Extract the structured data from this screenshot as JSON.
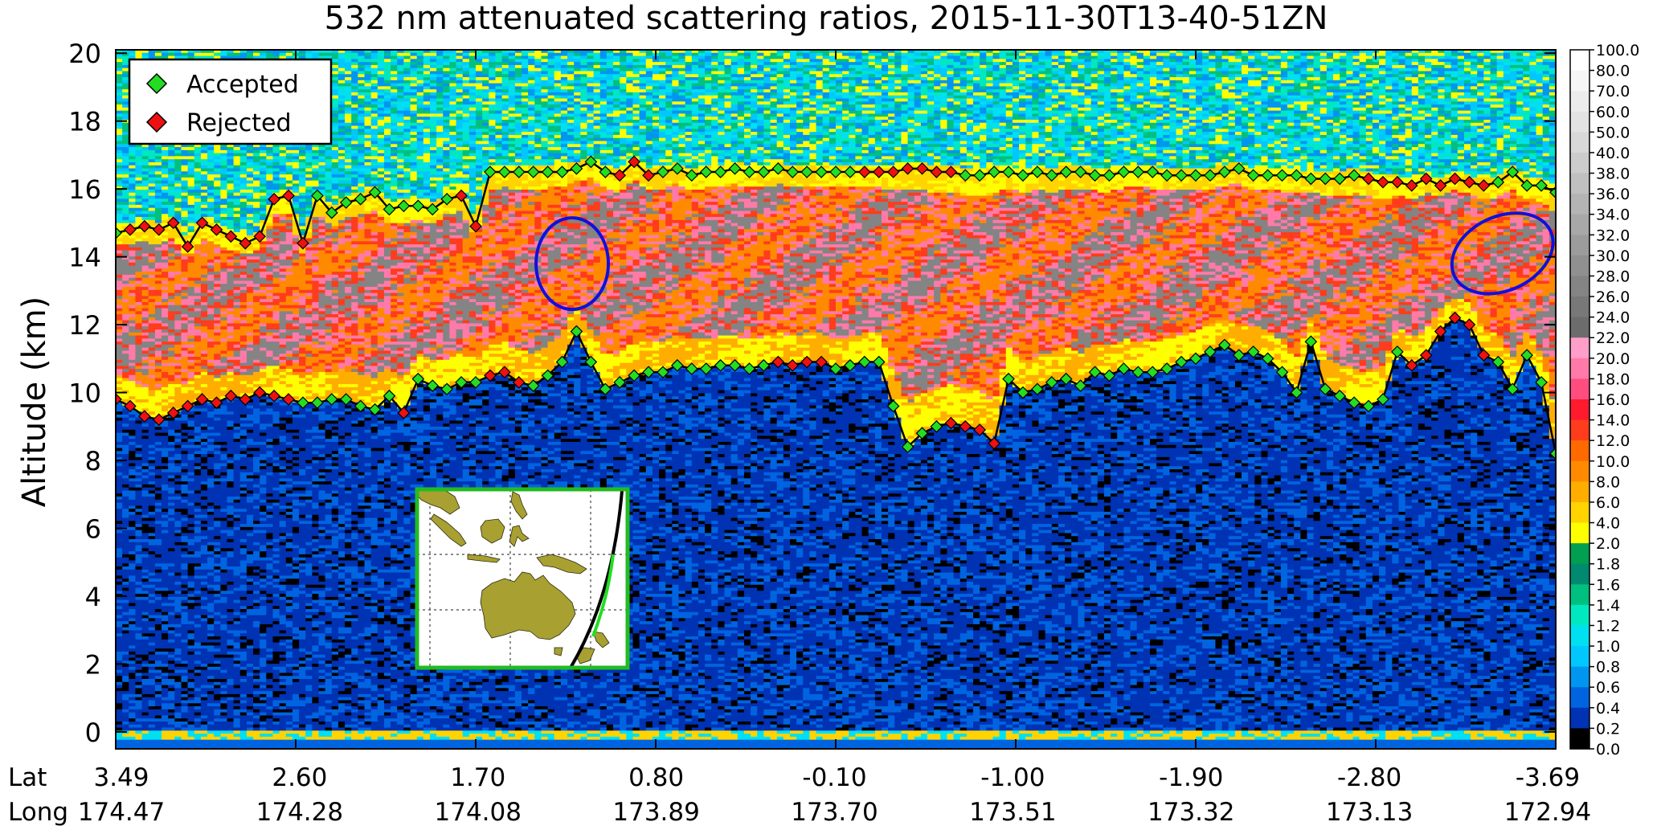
{
  "chart_data": {
    "type": "heatmap",
    "title": "532 nm attenuated scattering ratios, 2015-11-30T13-40-51ZN",
    "ylabel": "Altitude (km)",
    "ylim": [
      -0.5,
      20.1
    ],
    "y_ticks": [
      0,
      2,
      4,
      6,
      8,
      10,
      12,
      14,
      16,
      18,
      20
    ],
    "x_rows": [
      {
        "label": "Lat",
        "values": [
          "3.49",
          "2.60",
          "1.70",
          "0.80",
          "-0.10",
          "-1.00",
          "-1.90",
          "-2.80",
          "-3.69"
        ]
      },
      {
        "label": "Long",
        "values": [
          "174.47",
          "174.28",
          "174.08",
          "173.89",
          "173.70",
          "173.51",
          "173.32",
          "173.13",
          "172.94"
        ]
      }
    ],
    "colorbar": {
      "labels": [
        "100.0",
        "80.0",
        "70.0",
        "60.0",
        "50.0",
        "40.0",
        "38.0",
        "36.0",
        "34.0",
        "32.0",
        "30.0",
        "28.0",
        "26.0",
        "24.0",
        "22.0",
        "20.0",
        "18.0",
        "16.0",
        "14.0",
        "12.0",
        "10.0",
        "8.0",
        "6.0",
        "4.0",
        "2.0",
        "1.8",
        "1.6",
        "1.4",
        "1.2",
        "1.0",
        "0.8",
        "0.6",
        "0.4",
        "0.2",
        "0.0"
      ],
      "colors": [
        "#ffffff",
        "#f6f6f6",
        "#ececec",
        "#e2e2e2",
        "#d8d8d8",
        "#cccccc",
        "#c0c0c0",
        "#b4b4b4",
        "#a8a8a8",
        "#9c9c9c",
        "#909090",
        "#848484",
        "#787878",
        "#6c6c6c",
        "#ff9ec8",
        "#ff7aa8",
        "#ff4d80",
        "#ff1a2e",
        "#ff3c1c",
        "#ff6a00",
        "#ff8a00",
        "#ffae00",
        "#ffd400",
        "#ffff00",
        "#00a050",
        "#008a70",
        "#00c080",
        "#00e8c0",
        "#00e0f0",
        "#00c8ff",
        "#0096f0",
        "#0064e0",
        "#0032b4",
        "#000000"
      ]
    },
    "legend": {
      "position": "top-left",
      "entries": [
        {
          "name": "Accepted",
          "color": "#22dd22"
        },
        {
          "name": "Rejected",
          "color": "#ee1111"
        }
      ]
    },
    "series": [
      {
        "name": "cloud-top-altitude",
        "x": [
          0.0,
          0.01,
          0.02,
          0.03,
          0.04,
          0.05,
          0.06,
          0.07,
          0.08,
          0.09,
          0.1,
          0.11,
          0.12,
          0.13,
          0.14,
          0.15,
          0.16,
          0.17,
          0.18,
          0.19,
          0.2,
          0.21,
          0.22,
          0.23,
          0.24,
          0.25,
          0.26,
          0.27,
          0.28,
          0.29,
          0.3,
          0.31,
          0.32,
          0.33,
          0.34,
          0.35,
          0.36,
          0.37,
          0.38,
          0.39,
          0.4,
          0.41,
          0.42,
          0.43,
          0.44,
          0.45,
          0.46,
          0.47,
          0.48,
          0.49,
          0.5,
          0.51,
          0.52,
          0.53,
          0.54,
          0.55,
          0.56,
          0.57,
          0.58,
          0.59,
          0.6,
          0.61,
          0.62,
          0.63,
          0.64,
          0.65,
          0.66,
          0.67,
          0.68,
          0.69,
          0.7,
          0.71,
          0.72,
          0.73,
          0.74,
          0.75,
          0.76,
          0.77,
          0.78,
          0.79,
          0.8,
          0.81,
          0.82,
          0.83,
          0.84,
          0.85,
          0.86,
          0.87,
          0.88,
          0.89,
          0.9,
          0.91,
          0.92,
          0.93,
          0.94,
          0.95,
          0.96,
          0.97,
          0.98,
          0.99,
          1.0
        ],
        "y": [
          14.7,
          14.8,
          14.9,
          14.8,
          15.0,
          14.3,
          15.0,
          14.8,
          14.6,
          14.4,
          14.6,
          15.7,
          15.8,
          14.4,
          15.8,
          15.3,
          15.6,
          15.7,
          15.9,
          15.4,
          15.5,
          15.5,
          15.4,
          15.7,
          15.8,
          14.9,
          16.5,
          16.5,
          16.5,
          16.5,
          16.5,
          16.5,
          16.6,
          16.8,
          16.5,
          16.4,
          16.8,
          16.4,
          16.5,
          16.6,
          16.4,
          16.5,
          16.5,
          16.6,
          16.5,
          16.5,
          16.6,
          16.5,
          16.5,
          16.5,
          16.5,
          16.5,
          16.5,
          16.5,
          16.5,
          16.6,
          16.6,
          16.5,
          16.5,
          16.4,
          16.4,
          16.5,
          16.5,
          16.4,
          16.5,
          16.4,
          16.5,
          16.5,
          16.4,
          16.4,
          16.5,
          16.5,
          16.5,
          16.4,
          16.4,
          16.4,
          16.4,
          16.5,
          16.6,
          16.4,
          16.4,
          16.4,
          16.4,
          16.3,
          16.3,
          16.3,
          16.4,
          16.3,
          16.2,
          16.2,
          16.1,
          16.3,
          16.1,
          16.3,
          16.2,
          16.1,
          16.2,
          16.5,
          16.1,
          16.1,
          15.9
        ],
        "status": [
          "A",
          "R",
          "R",
          "R",
          "R",
          "R",
          "R",
          "R",
          "R",
          "R",
          "R",
          "R",
          "R",
          "R",
          "A",
          "A",
          "A",
          "A",
          "A",
          "A",
          "A",
          "A",
          "A",
          "A",
          "R",
          "R",
          "A",
          "A",
          "A",
          "A",
          "A",
          "A",
          "A",
          "A",
          "A",
          "R",
          "R",
          "R",
          "A",
          "A",
          "A",
          "A",
          "A",
          "A",
          "A",
          "A",
          "A",
          "A",
          "A",
          "A",
          "A",
          "A",
          "R",
          "R",
          "R",
          "R",
          "R",
          "R",
          "R",
          "A",
          "A",
          "A",
          "A",
          "A",
          "A",
          "A",
          "A",
          "A",
          "A",
          "A",
          "A",
          "A",
          "A",
          "A",
          "A",
          "A",
          "A",
          "A",
          "A",
          "A",
          "A",
          "A",
          "A",
          "A",
          "A",
          "A",
          "A",
          "R",
          "R",
          "R",
          "R",
          "R",
          "R",
          "R",
          "R",
          "R",
          "A",
          "A",
          "A",
          "A",
          "A"
        ]
      },
      {
        "name": "cloud-base-altitude",
        "x": [
          0.0,
          0.01,
          0.02,
          0.03,
          0.04,
          0.05,
          0.06,
          0.07,
          0.08,
          0.09,
          0.1,
          0.11,
          0.12,
          0.13,
          0.14,
          0.15,
          0.16,
          0.17,
          0.18,
          0.19,
          0.2,
          0.21,
          0.22,
          0.23,
          0.24,
          0.25,
          0.26,
          0.27,
          0.28,
          0.29,
          0.3,
          0.31,
          0.32,
          0.33,
          0.34,
          0.35,
          0.36,
          0.37,
          0.38,
          0.39,
          0.4,
          0.41,
          0.42,
          0.43,
          0.44,
          0.45,
          0.46,
          0.47,
          0.48,
          0.49,
          0.5,
          0.51,
          0.52,
          0.53,
          0.54,
          0.55,
          0.56,
          0.57,
          0.58,
          0.59,
          0.6,
          0.61,
          0.62,
          0.63,
          0.64,
          0.65,
          0.66,
          0.67,
          0.68,
          0.69,
          0.7,
          0.71,
          0.72,
          0.73,
          0.74,
          0.75,
          0.76,
          0.77,
          0.78,
          0.79,
          0.8,
          0.81,
          0.82,
          0.83,
          0.84,
          0.85,
          0.86,
          0.87,
          0.88,
          0.89,
          0.9,
          0.91,
          0.92,
          0.93,
          0.94,
          0.95,
          0.96,
          0.97,
          0.98,
          0.99,
          1.0
        ],
        "y": [
          9.8,
          9.6,
          9.3,
          9.2,
          9.4,
          9.6,
          9.8,
          9.7,
          9.9,
          9.8,
          10.0,
          9.9,
          9.8,
          9.7,
          9.7,
          9.8,
          9.8,
          9.6,
          9.5,
          9.9,
          9.4,
          10.4,
          10.2,
          10.1,
          10.3,
          10.3,
          10.5,
          10.6,
          10.3,
          10.2,
          10.5,
          10.9,
          11.8,
          10.9,
          10.1,
          10.3,
          10.5,
          10.6,
          10.6,
          10.8,
          10.7,
          10.7,
          10.8,
          10.8,
          10.7,
          10.8,
          10.9,
          10.8,
          10.9,
          10.9,
          10.7,
          10.8,
          10.9,
          10.9,
          9.6,
          8.4,
          8.8,
          9.0,
          9.1,
          9.0,
          8.9,
          8.5,
          10.4,
          10.0,
          10.1,
          10.3,
          10.4,
          10.2,
          10.6,
          10.5,
          10.7,
          10.6,
          10.6,
          10.7,
          10.9,
          11.0,
          11.2,
          11.4,
          11.1,
          11.2,
          11.0,
          10.6,
          10.0,
          11.5,
          10.1,
          9.9,
          9.7,
          9.6,
          9.8,
          11.2,
          10.8,
          11.1,
          11.8,
          12.2,
          12.0,
          11.1,
          10.9,
          10.1,
          11.1,
          10.3,
          8.2
        ],
        "status": [
          "R",
          "R",
          "R",
          "R",
          "R",
          "R",
          "R",
          "R",
          "R",
          "R",
          "R",
          "R",
          "R",
          "A",
          "A",
          "A",
          "A",
          "A",
          "A",
          "A",
          "R",
          "A",
          "A",
          "A",
          "A",
          "A",
          "R",
          "R",
          "R",
          "A",
          "A",
          "A",
          "A",
          "A",
          "A",
          "A",
          "A",
          "A",
          "A",
          "A",
          "A",
          "A",
          "A",
          "A",
          "A",
          "A",
          "R",
          "R",
          "R",
          "R",
          "A",
          "A",
          "A",
          "A",
          "A",
          "A",
          "A",
          "A",
          "R",
          "R",
          "R",
          "R",
          "A",
          "A",
          "A",
          "A",
          "A",
          "A",
          "A",
          "A",
          "A",
          "A",
          "A",
          "A",
          "A",
          "A",
          "A",
          "A",
          "A",
          "A",
          "A",
          "A",
          "A",
          "A",
          "A",
          "A",
          "A",
          "A",
          "A",
          "A",
          "R",
          "R",
          "R",
          "R",
          "R",
          "R",
          "A",
          "A",
          "A",
          "A",
          "A"
        ]
      }
    ],
    "highlight_regions": [
      {
        "shape": "ellipse",
        "color": "#1010dd",
        "x_center": 0.317,
        "y_center": 13.8
      },
      {
        "shape": "ellipse",
        "color": "#1010dd",
        "x_center": 0.963,
        "y_center": 14.1
      }
    ],
    "inset_map": {
      "region": "Australia and Maritime Continent",
      "land_color": "#a8a030",
      "track_color": "#000000",
      "track_highlight_color": "#22dd22",
      "frame_color": "#22bb22"
    }
  }
}
